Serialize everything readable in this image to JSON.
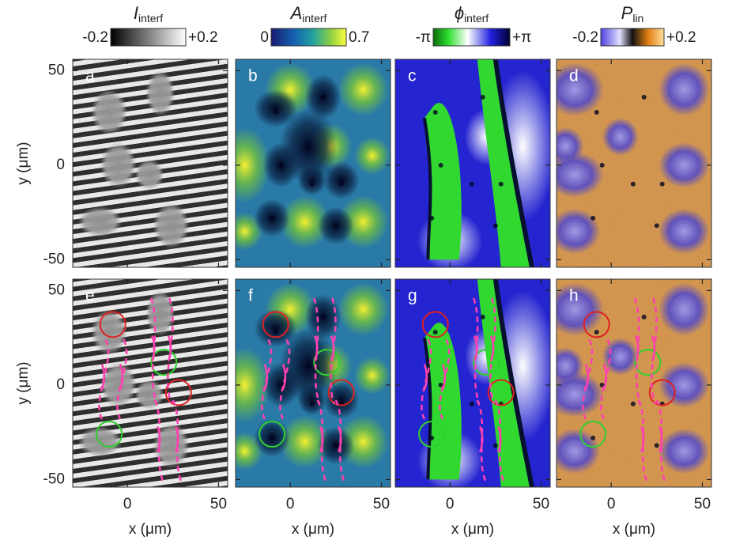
{
  "colorbars": [
    {
      "symbol": "I",
      "subscript": "interf",
      "min": "-0.2",
      "max": "+0.2"
    },
    {
      "symbol": "A",
      "subscript": "interf",
      "min": "0",
      "max": "0.7"
    },
    {
      "symbol": "ϕ",
      "subscript": "interf",
      "min": "-π",
      "max": "+π"
    },
    {
      "symbol": "P",
      "subscript": "lin",
      "min": "-0.2",
      "max": "+0.2"
    }
  ],
  "panels": [
    "a",
    "b",
    "c",
    "d",
    "e",
    "f",
    "g",
    "h"
  ],
  "ylabel": "y (μm)",
  "xlabel": "x (μm)",
  "xlim": [
    -30,
    55
  ],
  "ylim": [
    -54,
    56
  ],
  "xticks": [
    0,
    50
  ],
  "yticks": [
    50,
    0,
    -50
  ]
}
